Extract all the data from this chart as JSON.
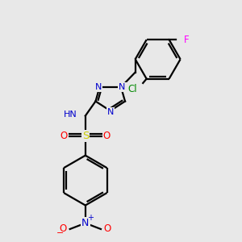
{
  "bg_color": "#e8e8e8",
  "bond_color": "#000000",
  "bond_lw": 1.6,
  "atom_colors": {
    "N": "#0000cc",
    "O": "#ff0000",
    "S": "#cccc00",
    "Cl": "#008800",
    "F": "#ff00ff",
    "H": "#666666",
    "C": "#000000"
  },
  "font_size": 8.0
}
